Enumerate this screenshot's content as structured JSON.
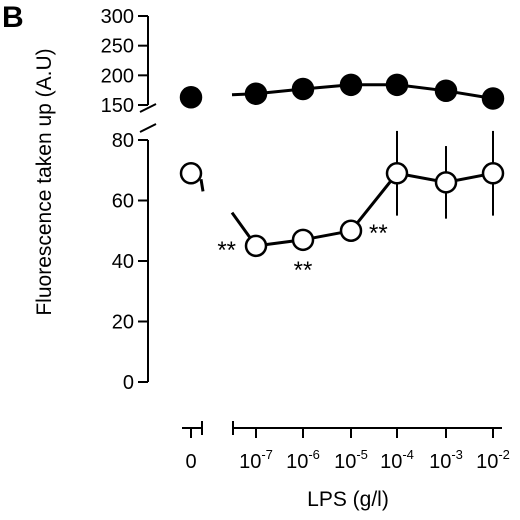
{
  "panel_label": "B",
  "chart_data": {
    "type": "line",
    "ylabel": "Fluorescence taken up (A.U)",
    "xlabel": "LPS (g/l)",
    "x_categories": [
      {
        "base": "0",
        "exp": ""
      },
      {
        "base": "10",
        "exp": "-7"
      },
      {
        "base": "10",
        "exp": "-6"
      },
      {
        "base": "10",
        "exp": "-5"
      },
      {
        "base": "10",
        "exp": "-4"
      },
      {
        "base": "10",
        "exp": "-3"
      },
      {
        "base": "10",
        "exp": "-2"
      }
    ],
    "y_ticks_upper": [
      "300",
      "250",
      "200",
      "150"
    ],
    "y_ticks_lower": [
      "80",
      "60",
      "40",
      "20",
      "0"
    ],
    "y_axis_break": true,
    "x_axis_break": true,
    "series": [
      {
        "marker": "filled-circle",
        "color": "#000000",
        "values": [
          163,
          169,
          177,
          184,
          184,
          174,
          161
        ],
        "errors": [
          0,
          0,
          0,
          0,
          0,
          0,
          0
        ]
      },
      {
        "marker": "open-circle",
        "color": "#000000",
        "values": [
          69,
          45,
          47,
          50,
          69,
          66,
          69
        ],
        "errors": [
          0,
          0,
          0,
          0,
          14,
          12,
          14
        ]
      }
    ],
    "annotations": [
      {
        "text": "**",
        "x_index": 1,
        "value": 45,
        "anchor": "left"
      },
      {
        "text": "**",
        "x_index": 2,
        "value": 47,
        "anchor": "below"
      },
      {
        "text": "**",
        "x_index": 3,
        "value": 50,
        "anchor": "right"
      }
    ]
  }
}
